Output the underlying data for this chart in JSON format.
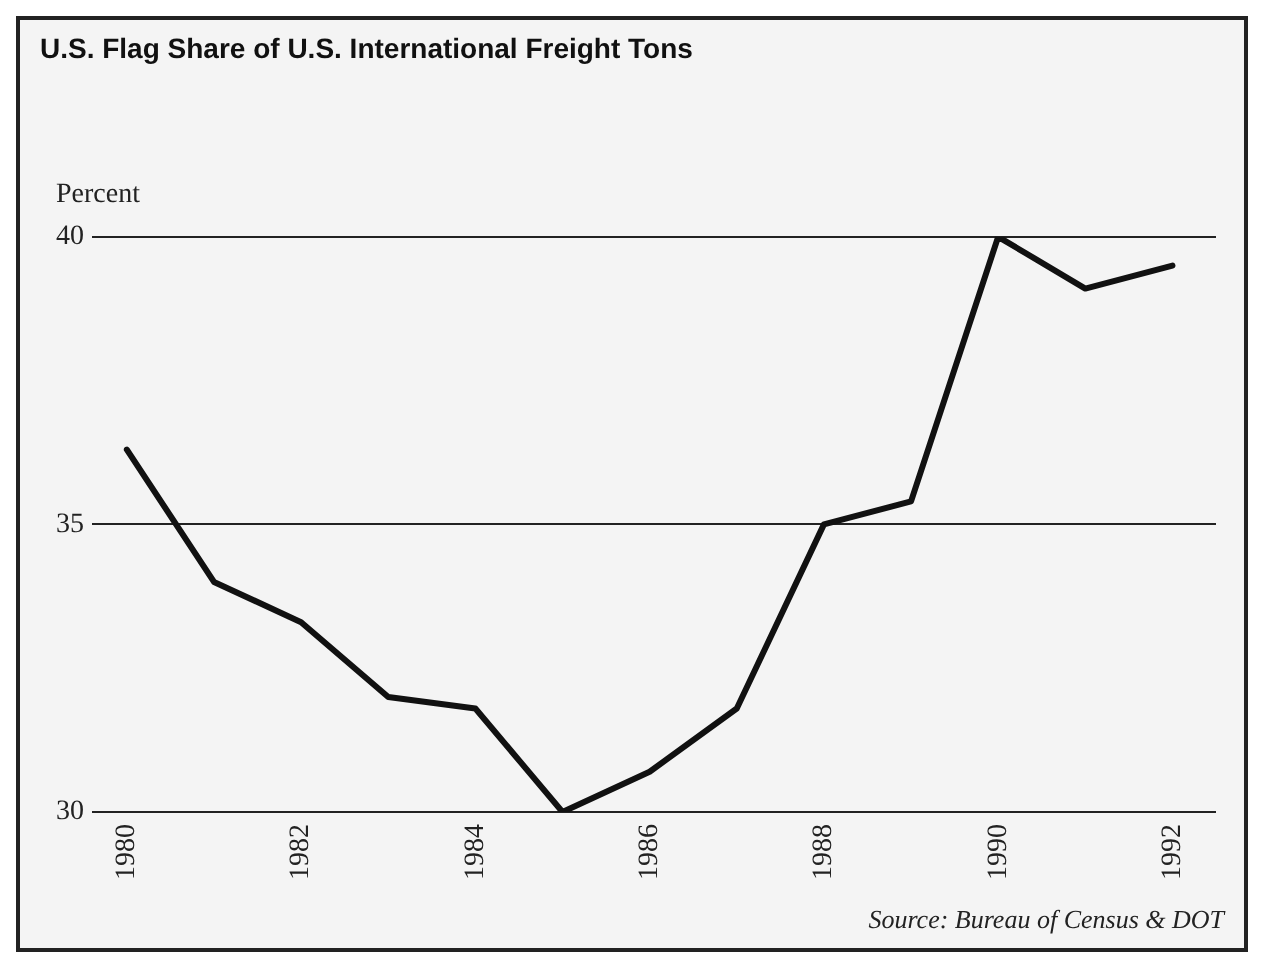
{
  "chart_data": {
    "type": "line",
    "title": "U.S. Flag Share of U.S. International Freight Tons",
    "ylabel": "Percent",
    "x": [
      1980,
      1981,
      1982,
      1983,
      1984,
      1985,
      1986,
      1987,
      1988,
      1989,
      1990,
      1991,
      1992
    ],
    "series": [
      {
        "color": "#111111",
        "values": [
          36.3,
          34.0,
          33.3,
          32.0,
          31.8,
          30.0,
          30.7,
          31.8,
          35.0,
          35.4,
          40.0,
          39.1,
          39.5
        ]
      }
    ],
    "xlim": [
      1979.6,
      1992.5
    ],
    "xticks": [
      1980,
      1982,
      1984,
      1986,
      1988,
      1990,
      1992
    ],
    "ylim": [
      30,
      40
    ],
    "yticks": [
      30,
      35,
      40
    ],
    "grid": "y",
    "legend": false,
    "annotations": [
      "Source: Bureau of Census & DOT"
    ]
  }
}
